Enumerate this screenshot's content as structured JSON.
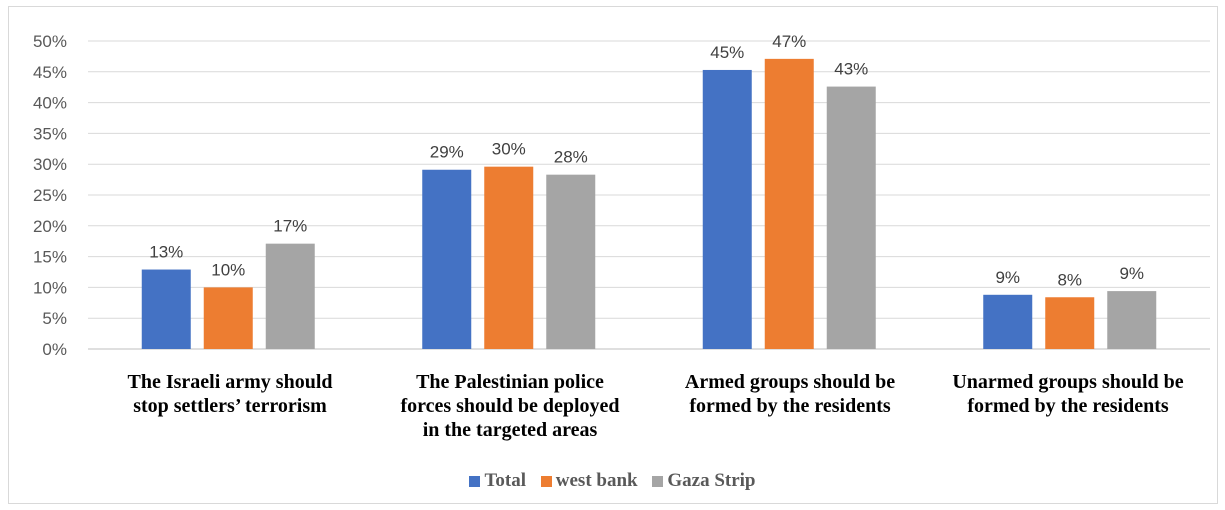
{
  "chart_data": {
    "type": "bar",
    "categories": [
      "The Israeli army should stop settlers’ terrorism",
      "The Palestinian police forces should be deployed in the targeted areas",
      "Armed groups should be formed by the residents",
      "Unarmed groups should be formed by the residents"
    ],
    "category_lines": [
      [
        "The Israeli army should",
        "stop settlers’ terrorism"
      ],
      [
        "The Palestinian police",
        "forces should be deployed",
        "in the targeted areas"
      ],
      [
        "Armed groups should be",
        "formed by the residents"
      ],
      [
        "Unarmed groups should be",
        "formed by the residents"
      ]
    ],
    "series": [
      {
        "name": "Total",
        "color": "#4472c4",
        "values": [
          13,
          29,
          45,
          9
        ],
        "bar_values": [
          12.9,
          29.1,
          45.3,
          8.8
        ]
      },
      {
        "name": "west bank",
        "color": "#ed7d31",
        "values": [
          10,
          30,
          47,
          8
        ],
        "bar_values": [
          10.0,
          29.6,
          47.1,
          8.4
        ]
      },
      {
        "name": "Gaza Strip",
        "color": "#a5a5a5",
        "values": [
          17,
          28,
          43,
          9
        ],
        "bar_values": [
          17.1,
          28.3,
          42.6,
          9.4
        ]
      }
    ],
    "ylim": [
      0,
      50
    ],
    "yticks": [
      0,
      5,
      10,
      15,
      20,
      25,
      30,
      35,
      40,
      45,
      50
    ],
    "ytick_labels": [
      "0%",
      "5%",
      "10%",
      "15%",
      "20%",
      "25%",
      "30%",
      "35%",
      "40%",
      "45%",
      "50%"
    ],
    "value_suffix": "%",
    "grid": true,
    "legend_position": "bottom",
    "title": "",
    "xlabel": "",
    "ylabel": ""
  }
}
